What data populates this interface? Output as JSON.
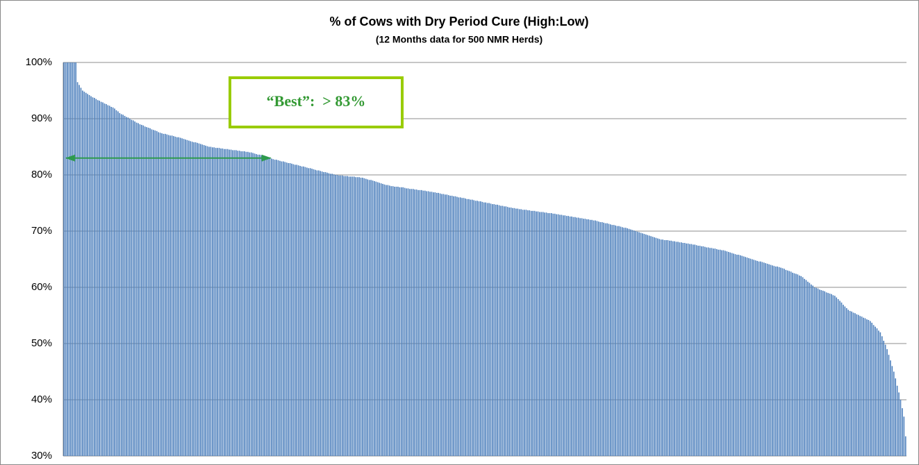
{
  "chart_data": {
    "type": "bar",
    "title": "% of Cows with Dry Period Cure (High:Low)",
    "subtitle": "(12 Months  data for 500 NMR Herds)",
    "color": "#4f81bd",
    "grid": true,
    "ylim": [
      30,
      100
    ],
    "yticks": [
      {
        "value": 30,
        "label": "30%"
      },
      {
        "value": 40,
        "label": "40%"
      },
      {
        "value": 50,
        "label": "50%"
      },
      {
        "value": 60,
        "label": "60%"
      },
      {
        "value": 70,
        "label": "70%"
      },
      {
        "value": 80,
        "label": "80%"
      },
      {
        "value": 90,
        "label": "90%"
      },
      {
        "value": 100,
        "label": "100%"
      }
    ],
    "annotation": {
      "text": "“Best”:  > 83%",
      "threshold": 83
    },
    "values": [
      100,
      100,
      100,
      100,
      100,
      100,
      100,
      100,
      96.5,
      96.0,
      95.5,
      95.0,
      94.8,
      94.6,
      94.4,
      94.2,
      94.0,
      93.8,
      93.7,
      93.5,
      93.3,
      93.2,
      93.0,
      92.9,
      92.7,
      92.6,
      92.4,
      92.3,
      92.1,
      92.0,
      91.8,
      91.5,
      91.3,
      91.0,
      90.8,
      90.7,
      90.5,
      90.3,
      90.2,
      90.0,
      89.8,
      89.7,
      89.5,
      89.3,
      89.2,
      89.0,
      88.9,
      88.8,
      88.6,
      88.5,
      88.4,
      88.3,
      88.1,
      88.0,
      87.9,
      87.8,
      87.6,
      87.5,
      87.4,
      87.3,
      87.3,
      87.2,
      87.1,
      87.0,
      87.0,
      86.9,
      86.8,
      86.7,
      86.7,
      86.6,
      86.5,
      86.4,
      86.3,
      86.2,
      86.1,
      86.0,
      85.9,
      85.8,
      85.8,
      85.7,
      85.6,
      85.5,
      85.4,
      85.3,
      85.2,
      85.1,
      85.0,
      85.0,
      84.9,
      84.9,
      84.8,
      84.8,
      84.8,
      84.7,
      84.7,
      84.6,
      84.6,
      84.6,
      84.5,
      84.5,
      84.4,
      84.4,
      84.4,
      84.3,
      84.3,
      84.2,
      84.2,
      84.2,
      84.1,
      84.1,
      84.0,
      84.0,
      83.9,
      83.8,
      83.7,
      83.6,
      83.6,
      83.5,
      83.4,
      83.3,
      83.2,
      83.1,
      83.0,
      82.9,
      82.8,
      82.7,
      82.7,
      82.6,
      82.5,
      82.4,
      82.4,
      82.3,
      82.2,
      82.1,
      82.1,
      82.0,
      81.9,
      81.8,
      81.8,
      81.7,
      81.6,
      81.5,
      81.5,
      81.4,
      81.3,
      81.2,
      81.2,
      81.1,
      81.0,
      80.9,
      80.8,
      80.8,
      80.7,
      80.6,
      80.5,
      80.5,
      80.4,
      80.3,
      80.2,
      80.2,
      80.1,
      80.0,
      80.0,
      79.9,
      79.9,
      79.9,
      79.8,
      79.8,
      79.8,
      79.7,
      79.7,
      79.7,
      79.7,
      79.6,
      79.6,
      79.6,
      79.5,
      79.5,
      79.4,
      79.3,
      79.2,
      79.1,
      79.1,
      79.0,
      78.9,
      78.8,
      78.7,
      78.6,
      78.5,
      78.4,
      78.3,
      78.2,
      78.2,
      78.1,
      78.0,
      78.0,
      77.9,
      77.9,
      77.9,
      77.8,
      77.8,
      77.8,
      77.7,
      77.6,
      77.6,
      77.5,
      77.5,
      77.5,
      77.4,
      77.4,
      77.3,
      77.3,
      77.3,
      77.2,
      77.2,
      77.1,
      77.1,
      77.0,
      77.0,
      76.9,
      76.9,
      76.8,
      76.8,
      76.7,
      76.6,
      76.6,
      76.5,
      76.5,
      76.4,
      76.3,
      76.3,
      76.2,
      76.2,
      76.1,
      76.0,
      76.0,
      75.9,
      75.9,
      75.8,
      75.7,
      75.7,
      75.6,
      75.6,
      75.5,
      75.4,
      75.4,
      75.3,
      75.3,
      75.2,
      75.1,
      75.1,
      75.0,
      75.0,
      74.9,
      74.8,
      74.8,
      74.7,
      74.7,
      74.6,
      74.5,
      74.5,
      74.4,
      74.4,
      74.3,
      74.2,
      74.2,
      74.1,
      74.1,
      74.0,
      74.0,
      73.9,
      73.9,
      73.8,
      73.8,
      73.8,
      73.7,
      73.7,
      73.6,
      73.6,
      73.6,
      73.5,
      73.5,
      73.4,
      73.4,
      73.4,
      73.3,
      73.3,
      73.2,
      73.2,
      73.2,
      73.1,
      73.1,
      73.0,
      73.0,
      72.9,
      72.9,
      72.8,
      72.8,
      72.7,
      72.7,
      72.6,
      72.6,
      72.5,
      72.5,
      72.4,
      72.4,
      72.3,
      72.3,
      72.2,
      72.2,
      72.1,
      72.1,
      72.0,
      72.0,
      71.9,
      71.9,
      71.8,
      71.7,
      71.6,
      71.6,
      71.5,
      71.4,
      71.4,
      71.3,
      71.2,
      71.1,
      71.1,
      71.0,
      70.9,
      70.9,
      70.8,
      70.7,
      70.6,
      70.6,
      70.5,
      70.4,
      70.3,
      70.2,
      70.1,
      70.0,
      69.9,
      69.8,
      69.7,
      69.6,
      69.5,
      69.4,
      69.3,
      69.2,
      69.1,
      69.0,
      68.9,
      68.8,
      68.7,
      68.6,
      68.5,
      68.5,
      68.4,
      68.4,
      68.4,
      68.3,
      68.3,
      68.2,
      68.2,
      68.1,
      68.1,
      68.0,
      68.0,
      67.9,
      67.9,
      67.8,
      67.8,
      67.7,
      67.7,
      67.6,
      67.6,
      67.5,
      67.4,
      67.4,
      67.3,
      67.3,
      67.2,
      67.1,
      67.1,
      67.0,
      67.0,
      66.9,
      66.9,
      66.8,
      66.7,
      66.7,
      66.6,
      66.6,
      66.5,
      66.4,
      66.3,
      66.2,
      66.1,
      66.0,
      65.9,
      65.8,
      65.8,
      65.7,
      65.6,
      65.5,
      65.4,
      65.3,
      65.2,
      65.1,
      65.0,
      64.9,
      64.8,
      64.7,
      64.6,
      64.6,
      64.5,
      64.4,
      64.3,
      64.2,
      64.1,
      64.0,
      63.9,
      63.8,
      63.7,
      63.7,
      63.6,
      63.5,
      63.4,
      63.3,
      63.1,
      63.0,
      62.9,
      62.8,
      62.6,
      62.5,
      62.4,
      62.3,
      62.1,
      62.0,
      61.8,
      61.5,
      61.3,
      61.0,
      60.8,
      60.5,
      60.3,
      60.0,
      59.9,
      59.8,
      59.6,
      59.5,
      59.4,
      59.3,
      59.1,
      59.0,
      58.9,
      58.8,
      58.6,
      58.5,
      58.2,
      57.9,
      57.6,
      57.3,
      56.9,
      56.6,
      56.3,
      56.0,
      55.8,
      55.7,
      55.5,
      55.4,
      55.2,
      55.1,
      54.9,
      54.8,
      54.6,
      54.5,
      54.3,
      54.2,
      54.0,
      53.7,
      53.3,
      53.0,
      52.7,
      52.3,
      52.0,
      51.3,
      50.5,
      49.8,
      49.0,
      48.0,
      47.0,
      46.0,
      45.0,
      43.8,
      42.5,
      41.3,
      40.0,
      38.5,
      37.0,
      33.5
    ]
  }
}
